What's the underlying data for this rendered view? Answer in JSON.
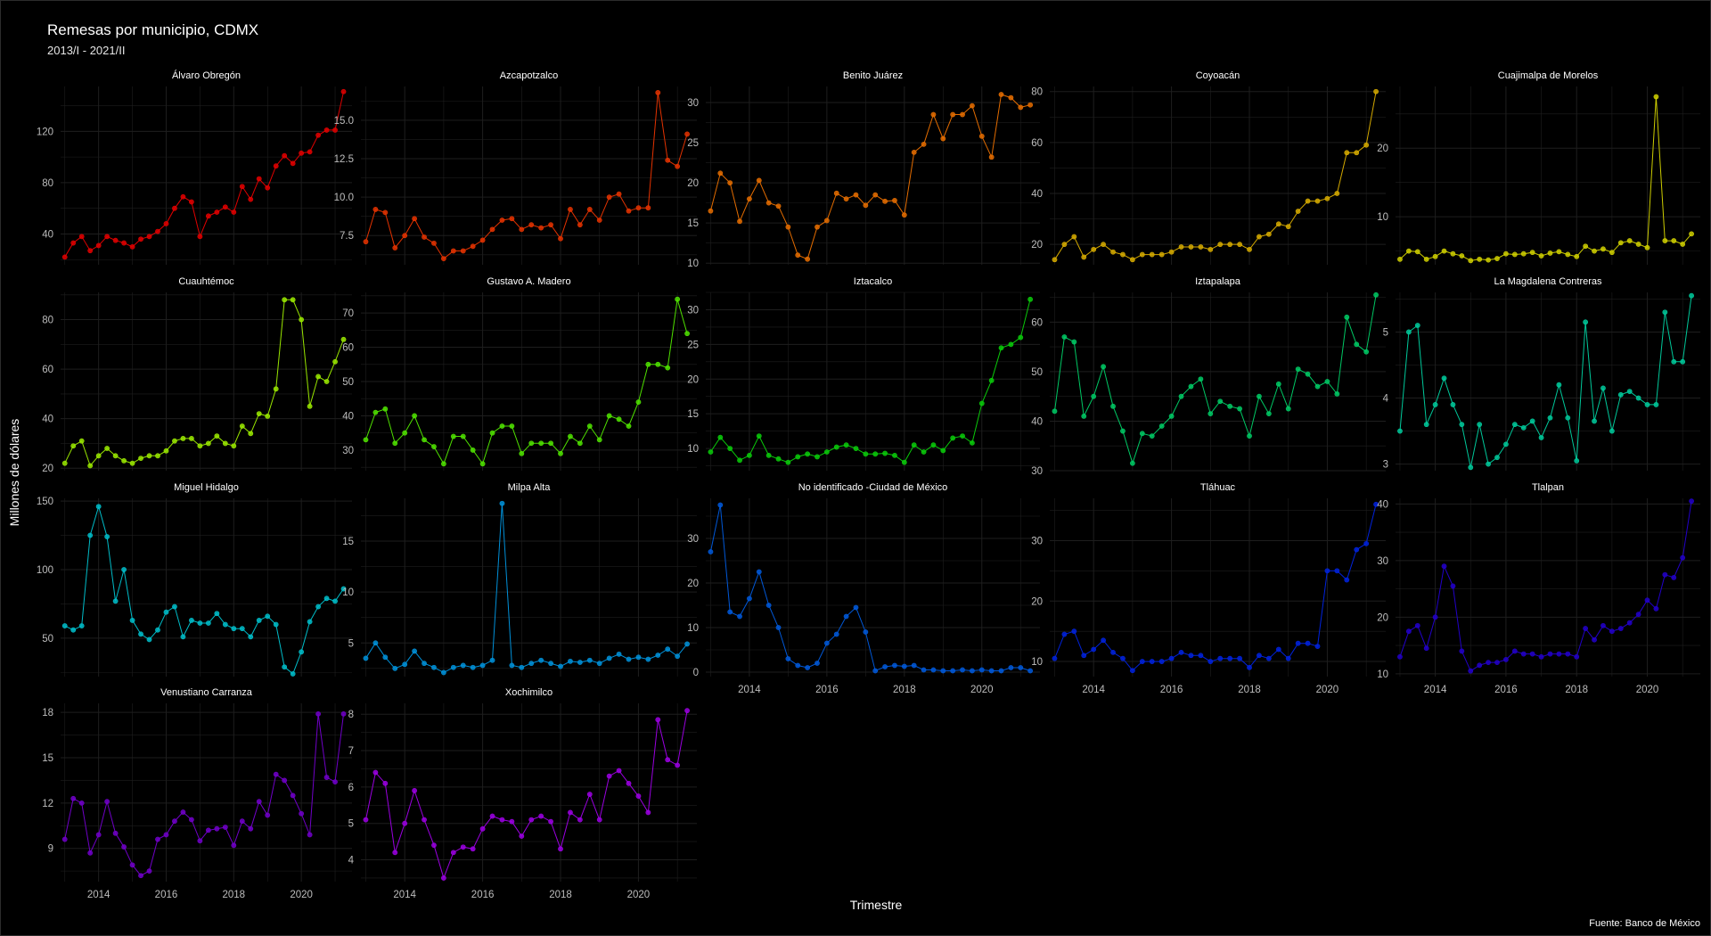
{
  "title": "Remesas por municipio, CDMX",
  "subtitle": "2013/I - 2021/II",
  "ylabel": "Millones de dólares",
  "xlabel": "Trimestre",
  "caption": "Fuente: Banco de México",
  "colors": {
    "background": "#000000",
    "grid": "#1e1e1e",
    "text": "#ffffff",
    "tick": "#bdbdbd"
  },
  "chart_data": {
    "type": "line",
    "layout": "facet_wrap, 5 columns, free y scales",
    "x_start": "2013/I",
    "x_end": "2021/II",
    "x_ticks": [
      2014,
      2016,
      2018,
      2020
    ],
    "panels": [
      {
        "name": "Álvaro Obregón",
        "color": "#e00000",
        "ylim": [
          16,
          155
        ],
        "y_ticks": [
          40,
          80,
          120
        ],
        "values": [
          22,
          33,
          38,
          27,
          31,
          38,
          35,
          33,
          30,
          36,
          38,
          42,
          48,
          60,
          69,
          65,
          38,
          54,
          57,
          61,
          57,
          77,
          67,
          83,
          76,
          93,
          101,
          95,
          103,
          104,
          117,
          121,
          121,
          151
        ]
      },
      {
        "name": "Azcapotzalco",
        "color": "#e33200",
        "ylim": [
          5.6,
          17.2
        ],
        "y_ticks": [
          7.5,
          10.0,
          12.5,
          15.0
        ],
        "values": [
          7.1,
          9.2,
          9.0,
          6.7,
          7.5,
          8.6,
          7.4,
          7.0,
          6.0,
          6.5,
          6.5,
          6.8,
          7.2,
          7.9,
          8.5,
          8.6,
          7.9,
          8.2,
          8.0,
          8.2,
          7.3,
          9.2,
          8.2,
          9.2,
          8.5,
          10.0,
          10.2,
          9.1,
          9.3,
          9.3,
          16.8,
          12.4,
          12.0,
          14.1
        ]
      },
      {
        "name": "Benito Juárez",
        "color": "#e36c00",
        "ylim": [
          9.8,
          32
        ],
        "y_ticks": [
          10,
          15,
          20,
          25,
          30
        ],
        "values": [
          16.5,
          21.2,
          20.0,
          15.2,
          18.0,
          20.3,
          17.5,
          17.1,
          14.5,
          11.0,
          10.5,
          14.5,
          15.3,
          18.7,
          18.0,
          18.5,
          17.2,
          18.5,
          17.7,
          17.8,
          16.0,
          23.8,
          24.8,
          28.5,
          25.5,
          28.5,
          28.5,
          29.6,
          25.8,
          23.2,
          31.0,
          30.6,
          29.4,
          29.7
        ]
      },
      {
        "name": "Coyoacán",
        "color": "#d4a900",
        "ylim": [
          12,
          82
        ],
        "y_ticks": [
          20,
          40,
          60,
          80
        ],
        "values": [
          14,
          20,
          23,
          15,
          18,
          20,
          17,
          16,
          14,
          16,
          16,
          16,
          17,
          19,
          19,
          19,
          18,
          20,
          20,
          20,
          18,
          23,
          24,
          28,
          27,
          33,
          37,
          37,
          38,
          40,
          56,
          56,
          59,
          80
        ]
      },
      {
        "name": "Cuajimalpa de Morelos",
        "color": "#cccc00",
        "ylim": [
          3,
          29
        ],
        "y_ticks": [
          10,
          20
        ],
        "values": [
          3.8,
          5.0,
          4.9,
          3.8,
          4.2,
          5.0,
          4.6,
          4.3,
          3.6,
          3.8,
          3.7,
          3.9,
          4.6,
          4.5,
          4.6,
          4.8,
          4.3,
          4.7,
          4.9,
          4.5,
          4.2,
          5.7,
          5.0,
          5.3,
          4.8,
          6.2,
          6.5,
          6.0,
          5.5,
          27.5,
          6.5,
          6.5,
          6.0,
          7.5
        ]
      },
      {
        "name": "Cuauhtémoc",
        "color": "#99e600",
        "ylim": [
          19,
          91
        ],
        "y_ticks": [
          20,
          40,
          60,
          80
        ],
        "values": [
          22,
          29,
          31,
          21,
          25,
          28,
          25,
          23,
          22,
          24,
          25,
          25,
          27,
          31,
          32,
          32,
          29,
          30,
          33,
          30,
          29,
          37,
          34,
          42,
          41,
          52,
          88,
          88,
          80,
          45,
          57,
          55,
          63,
          72
        ]
      },
      {
        "name": "Gustavo A. Madero",
        "color": "#4fe000",
        "ylim": [
          24,
          76
        ],
        "y_ticks": [
          30,
          40,
          50,
          60,
          70
        ],
        "values": [
          33,
          41,
          42,
          32,
          35,
          40,
          33,
          31,
          26,
          34,
          34,
          30,
          26,
          35,
          37,
          37,
          29,
          32,
          32,
          32,
          29,
          34,
          32,
          37,
          33,
          40,
          39,
          37,
          44,
          55,
          55,
          54,
          74,
          64
        ]
      },
      {
        "name": "Iztacalco",
        "color": "#0ac90a",
        "ylim": [
          6.8,
          32.5
        ],
        "y_ticks": [
          10,
          15,
          20,
          25,
          30
        ],
        "values": [
          9.5,
          11.6,
          10.0,
          8.3,
          9.0,
          11.8,
          9.0,
          8.5,
          8.0,
          8.8,
          9.2,
          8.8,
          9.5,
          10.2,
          10.5,
          10.0,
          9.2,
          9.2,
          9.3,
          9.0,
          8.0,
          10.5,
          9.5,
          10.5,
          9.7,
          11.5,
          11.8,
          10.8,
          16.5,
          19.8,
          24.5,
          25.0,
          26.0,
          31.5
        ]
      },
      {
        "name": "Iztapalapa",
        "color": "#00c864",
        "ylim": [
          30,
          66
        ],
        "y_ticks": [
          30,
          40,
          50,
          60
        ],
        "values": [
          42,
          57,
          56,
          41,
          45,
          51,
          43,
          38,
          31.5,
          37.5,
          37,
          39,
          41,
          45,
          47,
          48.5,
          41.5,
          44,
          43,
          42.5,
          37,
          45,
          41.5,
          47.5,
          42.5,
          50.5,
          49.5,
          47,
          48,
          45.5,
          61,
          55.5,
          54,
          65.5
        ]
      },
      {
        "name": "La Magdalena Contreras",
        "color": "#00c89a",
        "ylim": [
          2.9,
          5.6
        ],
        "y_ticks": [
          3,
          4,
          5
        ],
        "values": [
          3.5,
          5.0,
          5.1,
          3.6,
          3.9,
          4.3,
          3.9,
          3.6,
          2.95,
          3.6,
          3.0,
          3.1,
          3.3,
          3.6,
          3.55,
          3.65,
          3.4,
          3.7,
          4.2,
          3.7,
          3.05,
          5.15,
          3.65,
          4.15,
          3.5,
          4.05,
          4.1,
          4.0,
          3.9,
          3.9,
          5.3,
          4.55,
          4.55,
          5.55
        ]
      },
      {
        "name": "Miguel Hidalgo",
        "color": "#00bcc8",
        "ylim": [
          22,
          152
        ],
        "y_ticks": [
          50,
          100,
          150
        ],
        "values": [
          59,
          56,
          59,
          125,
          146,
          124,
          77,
          100,
          63,
          53,
          49,
          56,
          69,
          73,
          51,
          63,
          61,
          61,
          68,
          60,
          57,
          57,
          51,
          63,
          66,
          60,
          29,
          24,
          40,
          62,
          73,
          79,
          77,
          86
        ]
      },
      {
        "name": "Milpa Alta",
        "color": "#0090d8",
        "ylim": [
          1.7,
          19.2
        ],
        "y_ticks": [
          5,
          10,
          15
        ],
        "values": [
          3.5,
          5.0,
          3.6,
          2.5,
          2.9,
          4.2,
          3.0,
          2.6,
          2.1,
          2.6,
          2.8,
          2.6,
          2.8,
          3.3,
          18.7,
          2.8,
          2.6,
          3.0,
          3.3,
          3.0,
          2.7,
          3.2,
          3.1,
          3.3,
          3.0,
          3.5,
          3.9,
          3.4,
          3.6,
          3.4,
          3.8,
          4.4,
          3.7,
          4.9
        ]
      },
      {
        "name": "No identificado -Ciudad de México",
        "color": "#0058d8",
        "ylim": [
          -1,
          39
        ],
        "y_ticks": [
          0,
          10,
          20,
          30
        ],
        "values": [
          27,
          37.5,
          13.5,
          12.5,
          16.5,
          22.5,
          15,
          10,
          3,
          1.5,
          1,
          2,
          6.5,
          8.5,
          12.5,
          14.5,
          9,
          0.3,
          1.2,
          1.5,
          1.3,
          1.5,
          0.5,
          0.5,
          0.3,
          0.3,
          0.5,
          0.3,
          0.5,
          0.3,
          0.3,
          1,
          1,
          0.3
        ]
      },
      {
        "name": "Tláhuac",
        "color": "#0022dc",
        "ylim": [
          7.5,
          37
        ],
        "y_ticks": [
          10,
          20,
          30
        ],
        "values": [
          10.5,
          14.5,
          15,
          11,
          12,
          13.5,
          11.5,
          10.5,
          8.5,
          10,
          10,
          10,
          10.5,
          11.5,
          11,
          11,
          10,
          10.5,
          10.5,
          10.5,
          9,
          11,
          10.5,
          12,
          10.5,
          13,
          13,
          12.5,
          25,
          25,
          23.5,
          28.5,
          29.5,
          36
        ]
      },
      {
        "name": "Tlalpan",
        "color": "#2200c8",
        "ylim": [
          9.5,
          41
        ],
        "y_ticks": [
          10,
          20,
          30,
          40
        ],
        "values": [
          13,
          17.5,
          18.5,
          14.5,
          20,
          29,
          25.5,
          14,
          10.5,
          11.5,
          12,
          12,
          12.5,
          14,
          13.5,
          13.5,
          13,
          13.5,
          13.5,
          13.5,
          13,
          18,
          16,
          18.5,
          17.5,
          18,
          19,
          20.5,
          23,
          21.5,
          27.5,
          27,
          30.5,
          40.5
        ]
      },
      {
        "name": "Venustiano Carranza",
        "color": "#7000c8",
        "ylim": [
          6.8,
          18.6
        ],
        "y_ticks": [
          9,
          12,
          15,
          18
        ],
        "values": [
          9.6,
          12.3,
          12.0,
          8.7,
          9.9,
          12.1,
          10.0,
          9.1,
          7.9,
          7.2,
          7.5,
          9.6,
          9.9,
          10.8,
          11.4,
          10.9,
          9.5,
          10.2,
          10.3,
          10.4,
          9.2,
          10.8,
          10.3,
          12.1,
          11.2,
          13.9,
          13.5,
          12.5,
          11.3,
          9.9,
          17.9,
          13.7,
          13.4,
          17.9
        ]
      },
      {
        "name": "Xochimilco",
        "color": "#9a00e0",
        "ylim": [
          3.4,
          8.3
        ],
        "y_ticks": [
          4,
          5,
          6,
          7,
          8
        ],
        "values": [
          5.1,
          6.4,
          6.1,
          4.2,
          5.0,
          5.9,
          5.1,
          4.4,
          3.5,
          4.2,
          4.35,
          4.3,
          4.85,
          5.2,
          5.1,
          5.05,
          4.65,
          5.1,
          5.2,
          5.05,
          4.3,
          5.3,
          5.1,
          5.8,
          5.1,
          6.3,
          6.45,
          6.1,
          5.75,
          5.3,
          7.85,
          6.75,
          6.6,
          8.1
        ]
      }
    ]
  }
}
